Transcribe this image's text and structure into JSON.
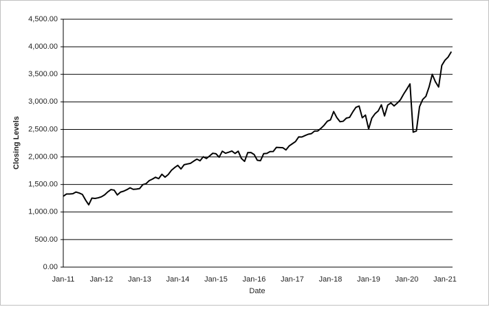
{
  "chart_data": {
    "type": "line",
    "y_axis_label": "Closing Levels",
    "x_axis_label": "Date",
    "categories": [
      "Jan-11",
      null,
      null,
      null,
      null,
      null,
      null,
      null,
      null,
      null,
      null,
      null,
      "Jan-12",
      null,
      null,
      null,
      null,
      null,
      null,
      null,
      null,
      null,
      null,
      null,
      "Jan-13",
      null,
      null,
      null,
      null,
      null,
      null,
      null,
      null,
      null,
      null,
      null,
      "Jan-14",
      null,
      null,
      null,
      null,
      null,
      null,
      null,
      null,
      null,
      null,
      null,
      "Jan-15",
      null,
      null,
      null,
      null,
      null,
      null,
      null,
      null,
      null,
      null,
      null,
      "Jan-16",
      null,
      null,
      null,
      null,
      null,
      null,
      null,
      null,
      null,
      null,
      null,
      "Jan-17",
      null,
      null,
      null,
      null,
      null,
      null,
      null,
      null,
      null,
      null,
      null,
      "Jan-18",
      null,
      null,
      null,
      null,
      null,
      null,
      null,
      null,
      null,
      null,
      null,
      "Jan-19",
      null,
      null,
      null,
      null,
      null,
      null,
      null,
      null,
      null,
      null,
      null,
      "Jan-20",
      null,
      null,
      null,
      null,
      null,
      null,
      null,
      null,
      null,
      null,
      null,
      "Jan-21",
      null,
      null
    ],
    "values": [
      1286,
      1327,
      1328,
      1332,
      1363,
      1345,
      1320,
      1218,
      1131,
      1253,
      1247,
      1258,
      1277,
      1312,
      1366,
      1408,
      1397,
      1310,
      1362,
      1379,
      1406,
      1440,
      1412,
      1416,
      1426,
      1498,
      1514,
      1569,
      1597,
      1631,
      1606,
      1686,
      1633,
      1681,
      1757,
      1806,
      1848,
      1782,
      1859,
      1872,
      1884,
      1924,
      1960,
      1930,
      2003,
      1972,
      2018,
      2067,
      2058,
      1995,
      2104,
      2067,
      2086,
      2107,
      2063,
      2104,
      1972,
      1920,
      2079,
      2080,
      2044,
      1940,
      1932,
      2060,
      2065,
      2097,
      2099,
      2174,
      2171,
      2168,
      2127,
      2199,
      2239,
      2279,
      2363,
      2362,
      2388,
      2412,
      2423,
      2470,
      2472,
      2519,
      2575,
      2648,
      2673,
      2824,
      2714,
      2640,
      2648,
      2705,
      2718,
      2816,
      2901,
      2924,
      2711,
      2760,
      2507,
      2704,
      2784,
      2834,
      2946,
      2744,
      2941,
      2980,
      2926,
      2977,
      3038,
      3141,
      3231,
      3326,
      2450,
      2470,
      2912,
      3044,
      3100,
      3271,
      3500,
      3363,
      3270,
      3662,
      3756,
      3814,
      3911
    ],
    "color": "#000000",
    "ylim": [
      0,
      4500
    ],
    "yticks": [
      {
        "value": 0,
        "label": "0.00"
      },
      {
        "value": 500,
        "label": "500.00"
      },
      {
        "value": 1000,
        "label": "1,000.00"
      },
      {
        "value": 1500,
        "label": "1,500.00"
      },
      {
        "value": 2000,
        "label": "2,000.00"
      },
      {
        "value": 2500,
        "label": "2,500.00"
      },
      {
        "value": 3000,
        "label": "3,000.00"
      },
      {
        "value": 3500,
        "label": "3,500.00"
      },
      {
        "value": 4000,
        "label": "4,000.00"
      },
      {
        "value": 4500,
        "label": "4,500.00"
      }
    ],
    "grid": true
  }
}
